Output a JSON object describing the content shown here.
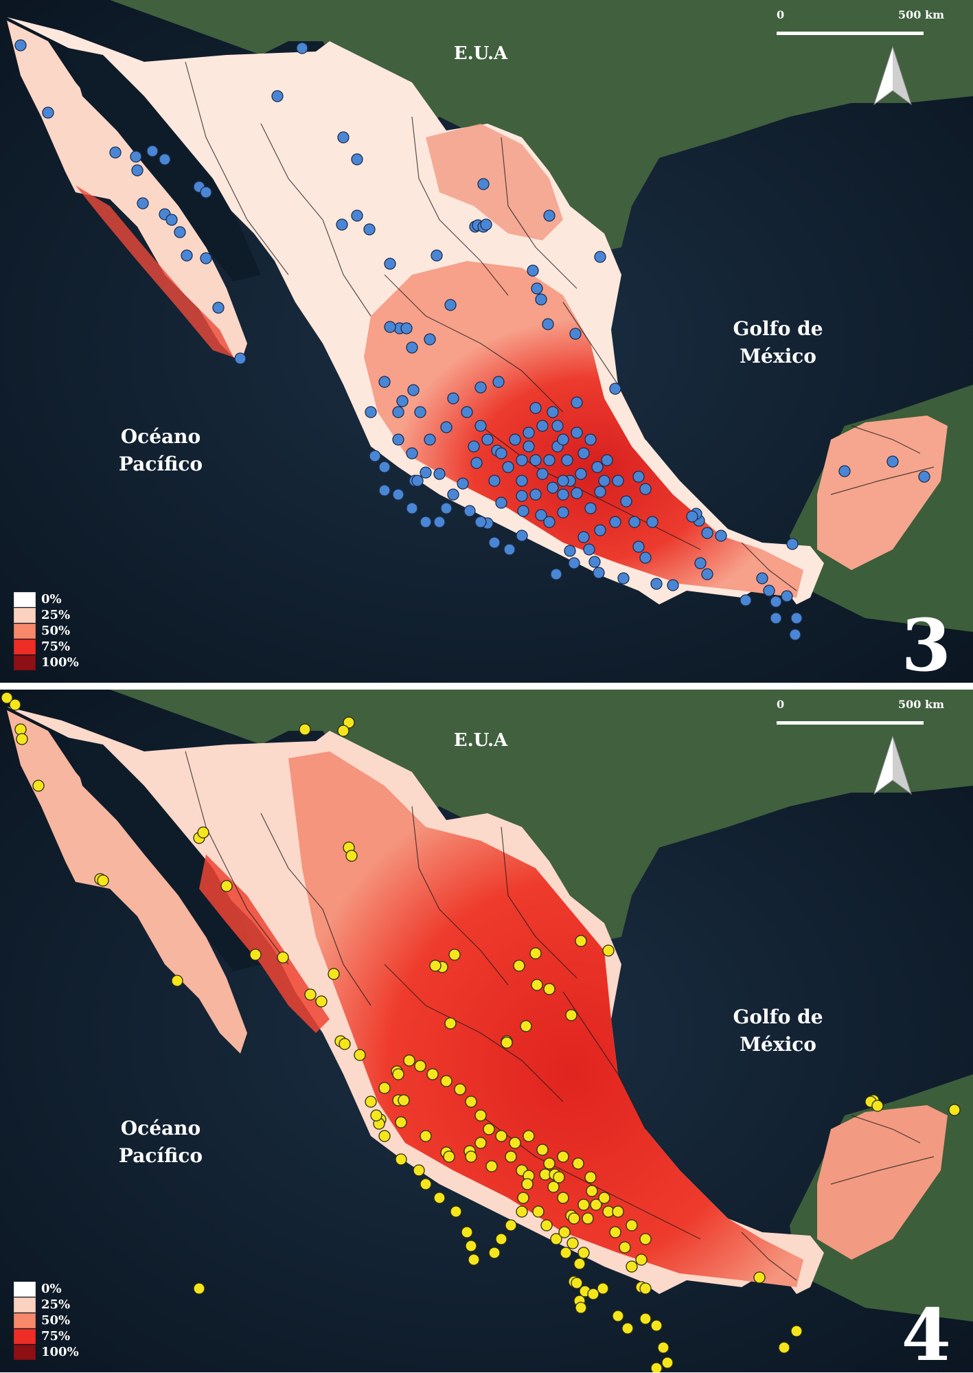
{
  "panels": [
    {
      "number": "3",
      "point_color": "#4a86d6",
      "point_stroke": "#1b2c48"
    },
    {
      "number": "4",
      "point_color": "#f5e61c",
      "point_stroke": "#2a2a10"
    }
  ],
  "labels": {
    "usa": "E.U.A",
    "gulf_line1": "Golfo de",
    "gulf_line2": "México",
    "pacific_line1": "Océano",
    "pacific_line2": "Pacífico"
  },
  "scale": {
    "start": "0",
    "end": "500 km"
  },
  "legend": [
    {
      "label": "0%",
      "color": "#ffffff"
    },
    {
      "label": "25%",
      "color": "#fbd2bf"
    },
    {
      "label": "50%",
      "color": "#f7896a"
    },
    {
      "label": "75%",
      "color": "#ee2d26"
    },
    {
      "label": "100%",
      "color": "#8e0f14"
    }
  ],
  "colors": {
    "ocean": "#0f1d2c",
    "land_usa": "#3d5a3a",
    "mexico_low": "#fde6dc",
    "mexico_high": "#e8342a"
  }
}
